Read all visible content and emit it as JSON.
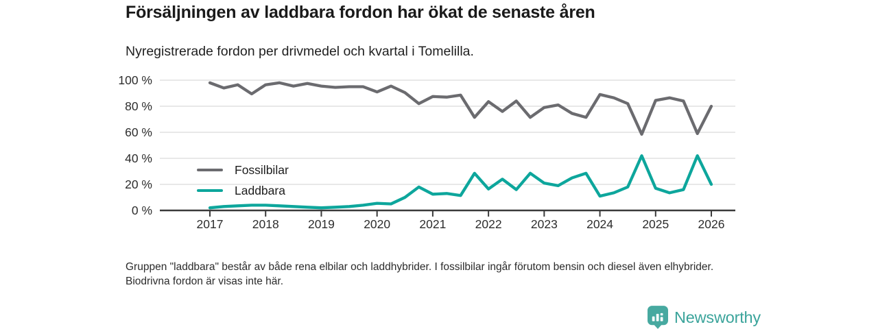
{
  "header": {
    "title": "Försäljningen av laddbara fordon har ökat de senaste åren",
    "subtitle": "Nyregistrerade fordon per drivmedel och kvartal i Tomelilla."
  },
  "chart_data": {
    "type": "line",
    "title": "Nyregistrerade fordon per drivmedel och kvartal i Tomelilla",
    "x_unit": "quarter",
    "categories": [
      "2017 Q1",
      "2017 Q2",
      "2017 Q3",
      "2017 Q4",
      "2018 Q1",
      "2018 Q2",
      "2018 Q3",
      "2018 Q4",
      "2019 Q1",
      "2019 Q2",
      "2019 Q3",
      "2019 Q4",
      "2020 Q1",
      "2020 Q2",
      "2020 Q3",
      "2020 Q4",
      "2021 Q1",
      "2021 Q2",
      "2021 Q3",
      "2021 Q4",
      "2022 Q1",
      "2022 Q2",
      "2022 Q3",
      "2022 Q4",
      "2023 Q1",
      "2023 Q2",
      "2023 Q3",
      "2023 Q4",
      "2024 Q1",
      "2024 Q2",
      "2024 Q3",
      "2024 Q4",
      "2025 Q1",
      "2025 Q2",
      "2025 Q3",
      "2025 Q4",
      "2026 Q1"
    ],
    "series": [
      {
        "name": "Fossilbilar",
        "color": "#6b6b6f",
        "values": [
          98,
          94,
          96.5,
          89.5,
          96.5,
          98,
          95.5,
          97.5,
          95.5,
          94.5,
          95,
          95,
          91,
          95.5,
          90.5,
          82,
          87.5,
          87,
          88.5,
          71.5,
          83.5,
          76,
          84,
          71.5,
          79,
          81,
          74.5,
          71.5,
          89,
          86.5,
          82,
          58.5,
          84.5,
          86.5,
          84,
          59,
          80
        ]
      },
      {
        "name": "Laddbara",
        "color": "#0da69c",
        "values": [
          2,
          3,
          3.5,
          4,
          4,
          3.5,
          3,
          2.5,
          2,
          2.5,
          3,
          4,
          5.5,
          5,
          10,
          18,
          12.5,
          13,
          11.5,
          28.5,
          16.5,
          24,
          16,
          28.5,
          21,
          19,
          25,
          28.5,
          11,
          13.5,
          18,
          42,
          17,
          13.5,
          16,
          42,
          20
        ]
      }
    ],
    "ylim": [
      0,
      100
    ],
    "y_ticks": [
      "0 %",
      "20 %",
      "40 %",
      "60 %",
      "80 %",
      "100 %"
    ],
    "y_tick_values": [
      0,
      20,
      40,
      60,
      80,
      100
    ],
    "x_tick_labels": [
      "2017",
      "2018",
      "2019",
      "2020",
      "2021",
      "2022",
      "2023",
      "2024",
      "2025",
      "2026"
    ],
    "x_tick_positions": [
      0,
      4,
      8,
      12,
      16,
      20,
      24,
      28,
      32,
      36
    ],
    "grid": "horizontal",
    "legend_position": "inside-bottom-left",
    "axis_color": "#3a3a3a",
    "gridline_color": "#dadada"
  },
  "legend": {
    "items": [
      {
        "label": "Fossilbilar",
        "color": "#6b6b6f"
      },
      {
        "label": "Laddbara",
        "color": "#0da69c"
      }
    ]
  },
  "footnote": {
    "text": "Gruppen \"laddbara\" består av både rena elbilar och laddhybrider. I fossilbilar ingår förutom bensin och diesel även elhybrider. Biodrivna fordon är visas inte här."
  },
  "logo": {
    "text": "Newsworthy",
    "icon": "newsworthy-badge-bar-chart-icon",
    "badge_color": "#47a9a0",
    "text_color": "#3ba49b"
  }
}
